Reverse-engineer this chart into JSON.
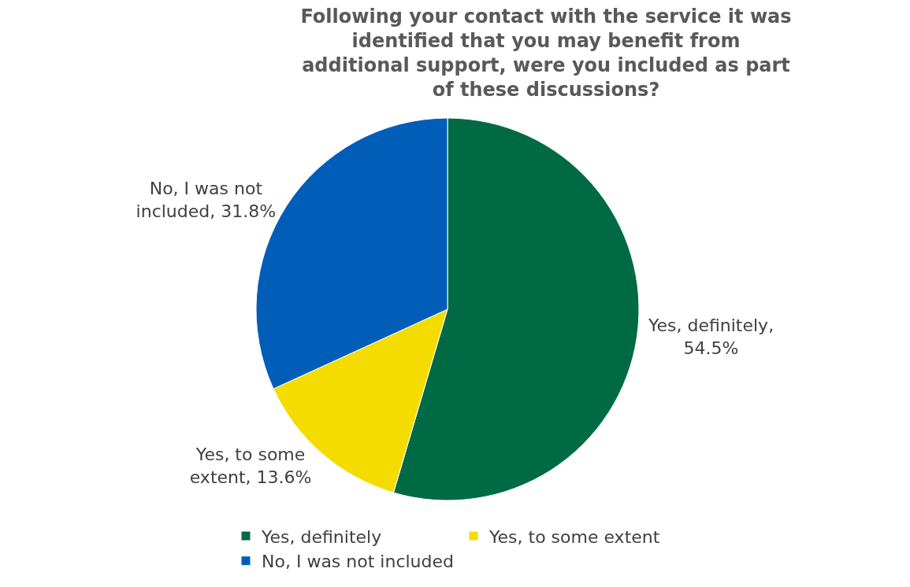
{
  "chart_data": {
    "type": "pie",
    "title": "Following your contact with the service it was identified that you may benefit from additional support, were you included as part of these discussions?",
    "categories": [
      "Yes, definitely",
      "Yes, to some extent",
      "No, I was not included"
    ],
    "values": [
      54.5,
      13.6,
      31.8
    ],
    "colors": [
      "#006a44",
      "#f5dc00",
      "#005eb8"
    ],
    "value_labels": [
      "Yes, definitely, 54.5%",
      "Yes, to some extent, 13.6%",
      "No, I was not included, 31.8%"
    ],
    "legend": "bottom"
  }
}
